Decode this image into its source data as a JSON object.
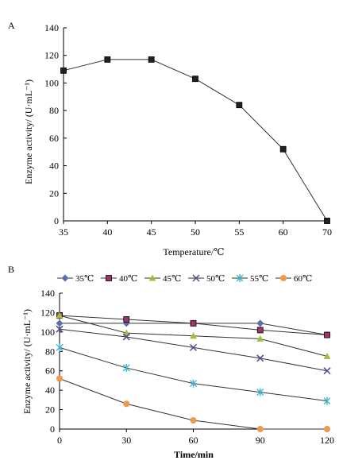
{
  "chart_data": [
    {
      "panel_label": "A",
      "type": "line",
      "categories": [
        "35",
        "40",
        "45",
        "50",
        "55",
        "60",
        "70"
      ],
      "yticks": [
        "0",
        "20",
        "40",
        "60",
        "80",
        "100",
        "120",
        "140"
      ],
      "series": [
        {
          "marker": "square",
          "values": [
            109,
            117,
            117,
            103,
            84,
            52,
            0
          ]
        }
      ],
      "xlabel": "Temperature/℃",
      "ylabel": "Enzyme activity/ (U·mL⁻¹)",
      "ylim": [
        0,
        140
      ],
      "grid": false
    },
    {
      "panel_label": "B",
      "type": "line",
      "categories": [
        "0",
        "30",
        "60",
        "90",
        "120"
      ],
      "yticks": [
        "0",
        "20",
        "40",
        "60",
        "80",
        "100",
        "120",
        "140"
      ],
      "series": [
        {
          "name": "35℃",
          "color": "#5b6ea8",
          "marker": "diamond",
          "values": [
            109,
            109,
            109,
            109,
            97
          ]
        },
        {
          "name": "40℃",
          "color": "#a0346a",
          "marker": "square",
          "values": [
            117,
            113,
            109,
            102,
            97
          ]
        },
        {
          "name": "45℃",
          "color": "#a3bc3e",
          "marker": "triangle",
          "values": [
            117,
            99,
            96,
            93,
            75
          ]
        },
        {
          "name": "50℃",
          "color": "#4a4f8c",
          "marker": "x",
          "values": [
            103,
            95,
            84,
            73,
            60
          ]
        },
        {
          "name": "55℃",
          "color": "#3fb7cf",
          "marker": "star",
          "values": [
            84,
            63,
            47,
            38,
            29
          ]
        },
        {
          "name": "60℃",
          "color": "#ee9a4d",
          "marker": "circle",
          "values": [
            52,
            26,
            9,
            0,
            0
          ]
        }
      ],
      "xlabel": "Time/min",
      "ylabel": "Enzyme activity/ (U·mL⁻¹)",
      "ylim": [
        0,
        140
      ],
      "legend": "top",
      "grid": false
    }
  ]
}
